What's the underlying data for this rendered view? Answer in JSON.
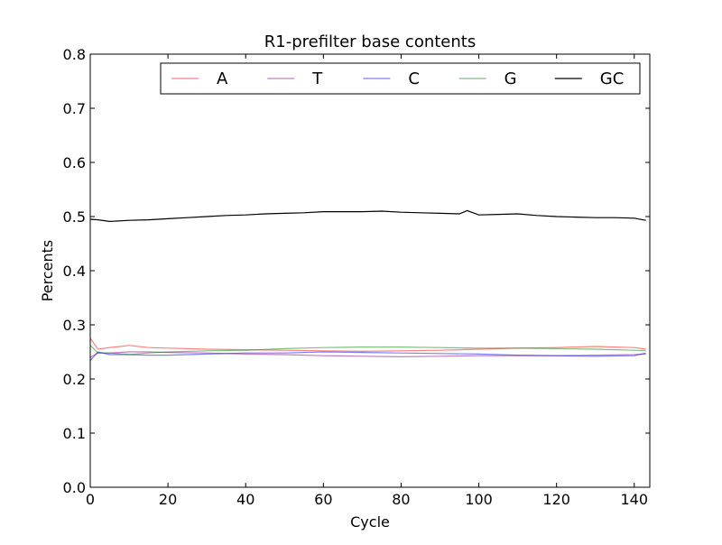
{
  "chart_data": {
    "type": "line",
    "title": "R1-prefilter base contents",
    "xlabel": "Cycle",
    "ylabel": "Percents",
    "xlim": [
      0,
      144
    ],
    "ylim": [
      0,
      0.8
    ],
    "xticks": [
      0,
      20,
      40,
      60,
      80,
      100,
      120,
      140
    ],
    "xtick_labels": [
      "0",
      "20",
      "40",
      "60",
      "80",
      "100",
      "120",
      "140"
    ],
    "yticks": [
      0.0,
      0.1,
      0.2,
      0.3,
      0.4,
      0.5,
      0.6,
      0.7,
      0.8
    ],
    "ytick_labels": [
      "0.0",
      "0.1",
      "0.2",
      "0.3",
      "0.4",
      "0.5",
      "0.6",
      "0.7",
      "0.8"
    ],
    "grid": false,
    "legend_position": "top",
    "series": [
      {
        "name": "A",
        "color": "#ff0000",
        "opacity": 0.5,
        "x": [
          0,
          2,
          5,
          10,
          15,
          20,
          30,
          40,
          50,
          60,
          70,
          80,
          90,
          100,
          110,
          120,
          130,
          140,
          143
        ],
        "y": [
          0.275,
          0.255,
          0.258,
          0.262,
          0.258,
          0.257,
          0.255,
          0.254,
          0.253,
          0.252,
          0.251,
          0.252,
          0.253,
          0.255,
          0.257,
          0.258,
          0.26,
          0.258,
          0.255
        ]
      },
      {
        "name": "T",
        "color": "#800080",
        "opacity": 0.5,
        "x": [
          0,
          2,
          5,
          10,
          15,
          20,
          30,
          40,
          50,
          60,
          70,
          80,
          90,
          100,
          110,
          120,
          130,
          140,
          143
        ],
        "y": [
          0.24,
          0.248,
          0.248,
          0.25,
          0.25,
          0.249,
          0.248,
          0.246,
          0.245,
          0.243,
          0.242,
          0.241,
          0.242,
          0.243,
          0.243,
          0.243,
          0.244,
          0.245,
          0.246
        ]
      },
      {
        "name": "C",
        "color": "#0000ff",
        "opacity": 0.5,
        "x": [
          0,
          2,
          5,
          10,
          15,
          20,
          30,
          40,
          50,
          60,
          70,
          80,
          90,
          100,
          110,
          120,
          130,
          140,
          143
        ],
        "y": [
          0.234,
          0.25,
          0.245,
          0.245,
          0.244,
          0.244,
          0.246,
          0.248,
          0.248,
          0.25,
          0.249,
          0.248,
          0.247,
          0.246,
          0.244,
          0.243,
          0.242,
          0.243,
          0.248
        ]
      },
      {
        "name": "G",
        "color": "#008000",
        "opacity": 0.5,
        "x": [
          0,
          2,
          5,
          10,
          15,
          20,
          30,
          40,
          50,
          60,
          70,
          80,
          90,
          100,
          110,
          120,
          130,
          140,
          143
        ],
        "y": [
          0.262,
          0.248,
          0.248,
          0.245,
          0.248,
          0.25,
          0.252,
          0.253,
          0.256,
          0.258,
          0.259,
          0.259,
          0.258,
          0.257,
          0.257,
          0.256,
          0.255,
          0.253,
          0.252
        ]
      },
      {
        "name": "GC",
        "color": "#000000",
        "opacity": 1.0,
        "x": [
          0,
          2,
          5,
          10,
          15,
          20,
          25,
          30,
          35,
          40,
          45,
          50,
          55,
          60,
          65,
          70,
          75,
          80,
          85,
          90,
          95,
          97,
          100,
          105,
          110,
          115,
          120,
          125,
          130,
          135,
          140,
          143
        ],
        "y": [
          0.495,
          0.494,
          0.491,
          0.493,
          0.494,
          0.496,
          0.498,
          0.5,
          0.502,
          0.503,
          0.505,
          0.506,
          0.507,
          0.509,
          0.509,
          0.509,
          0.51,
          0.508,
          0.507,
          0.506,
          0.505,
          0.511,
          0.503,
          0.504,
          0.505,
          0.502,
          0.5,
          0.499,
          0.498,
          0.498,
          0.497,
          0.493
        ]
      }
    ]
  }
}
